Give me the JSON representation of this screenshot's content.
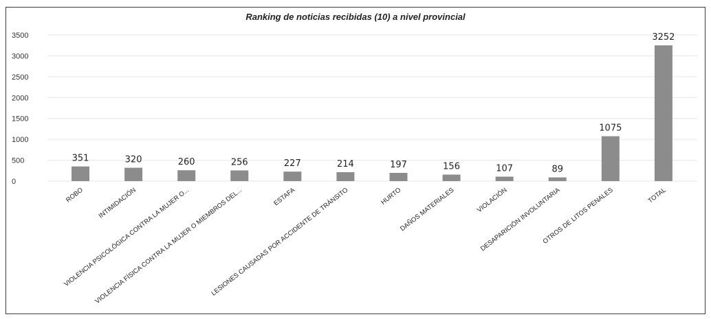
{
  "chart_data": {
    "type": "bar",
    "title": "Ranking de noticias recibidas (10) a nivel provincial",
    "categories": [
      "ROBO",
      "INTIMIDACIÓN",
      "VIOLENCIA PSICOLÓGICA CONTRA LA MUJER O...",
      "VIOLENCIA FÍSICA CONTRA LA MUJER O MIEMBROS DEL...",
      "ESTAFA",
      "LESIONES CAUSADAS POR ACCIDENTE DE TRÁNSITO",
      "HURTO",
      "DAÑOS MATERIALES",
      "VIOLACIÓN",
      "DESAPARICIÓN INVOLUNTARIA",
      "OTROS DE LITOS PENALES",
      "TOTAL"
    ],
    "values": [
      351,
      320,
      260,
      256,
      227,
      214,
      197,
      156,
      107,
      89,
      1075,
      3252
    ],
    "ylim": [
      0,
      3500
    ],
    "yticks": [
      0,
      500,
      1000,
      1500,
      2000,
      2500,
      3000,
      3500
    ],
    "xlabel": "",
    "ylabel": "",
    "grid": true,
    "bar_color": "#8c8c8c",
    "legend": false
  }
}
